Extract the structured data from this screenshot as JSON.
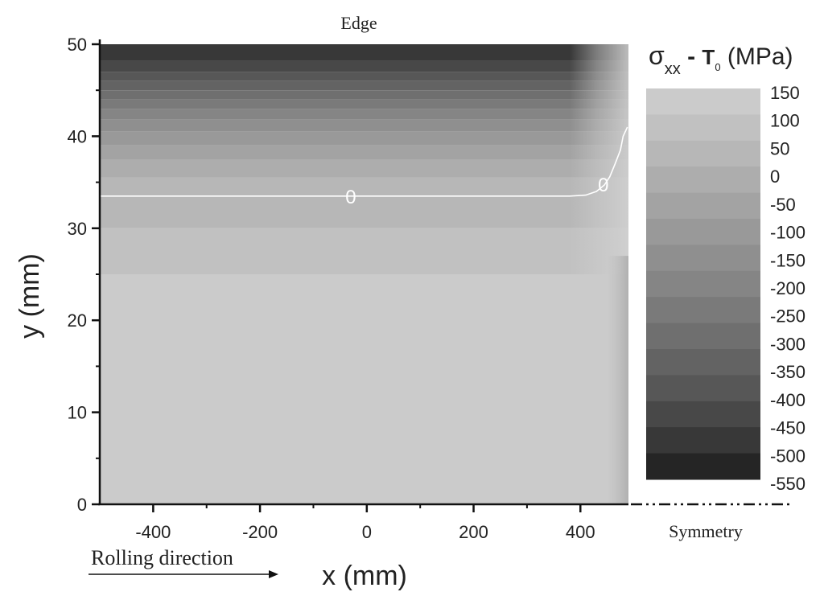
{
  "chart_data": {
    "type": "heatmap",
    "title": "",
    "xlabel": "x (mm)",
    "ylabel": "y (mm)",
    "xlim": [
      -500,
      490
    ],
    "ylim": [
      0,
      50
    ],
    "x_ticks": [
      -400,
      -200,
      0,
      200,
      400
    ],
    "y_ticks": [
      0,
      10,
      20,
      30,
      40,
      50
    ],
    "colorbar": {
      "title_main": "σ",
      "title_sub": "xx",
      "title_dash": " - ",
      "title_t": "T",
      "title_t_sub": "0",
      "title_unit": " (MPa)",
      "levels": [
        150,
        100,
        50,
        0,
        -50,
        -100,
        -150,
        -200,
        -250,
        -300,
        -350,
        -400,
        -450,
        -500,
        -550
      ],
      "colors": [
        "#cbcbcb",
        "#c1c1c1",
        "#b7b7b7",
        "#adadad",
        "#a3a3a3",
        "#999999",
        "#8f8f8f",
        "#858585",
        "#7a7a7a",
        "#6f6f6f",
        "#636363",
        "#575757",
        "#484848",
        "#383838",
        "#252525"
      ]
    },
    "stress_profile": [
      {
        "y_from": 0,
        "y_to": 25,
        "value": 125
      },
      {
        "y_from": 25,
        "y_to": 30,
        "value": 75
      },
      {
        "y_from": 30,
        "y_to": 35.5,
        "value": 25
      },
      {
        "y_from": 35.5,
        "y_to": 37.5,
        "value": -25
      },
      {
        "y_from": 37.5,
        "y_to": 39,
        "value": -75
      },
      {
        "y_from": 39,
        "y_to": 40.5,
        "value": -125
      },
      {
        "y_from": 40.5,
        "y_to": 41.8,
        "value": -175
      },
      {
        "y_from": 41.8,
        "y_to": 43,
        "value": -225
      },
      {
        "y_from": 43,
        "y_to": 44,
        "value": -275
      },
      {
        "y_from": 44,
        "y_to": 45,
        "value": -325
      },
      {
        "y_from": 45,
        "y_to": 46,
        "value": -375
      },
      {
        "y_from": 46,
        "y_to": 47,
        "value": -425
      },
      {
        "y_from": 47,
        "y_to": 48.2,
        "value": -475
      },
      {
        "y_from": 48.2,
        "y_to": 50,
        "value": -525
      }
    ],
    "zero_contour": {
      "label": "0",
      "points": [
        [
          -500,
          33.5
        ],
        [
          380,
          33.5
        ],
        [
          410,
          33.6
        ],
        [
          430,
          34
        ],
        [
          445,
          34.7
        ],
        [
          455,
          35.6
        ],
        [
          465,
          37
        ],
        [
          475,
          38.5
        ],
        [
          480,
          40
        ],
        [
          488,
          41
        ]
      ],
      "label_positions": [
        [
          -30,
          33.5
        ],
        [
          443,
          34.8
        ]
      ]
    },
    "annotations": {
      "top": "Edge",
      "bottom_right": "Symmetry",
      "bottom_left": "Rolling direction"
    }
  }
}
